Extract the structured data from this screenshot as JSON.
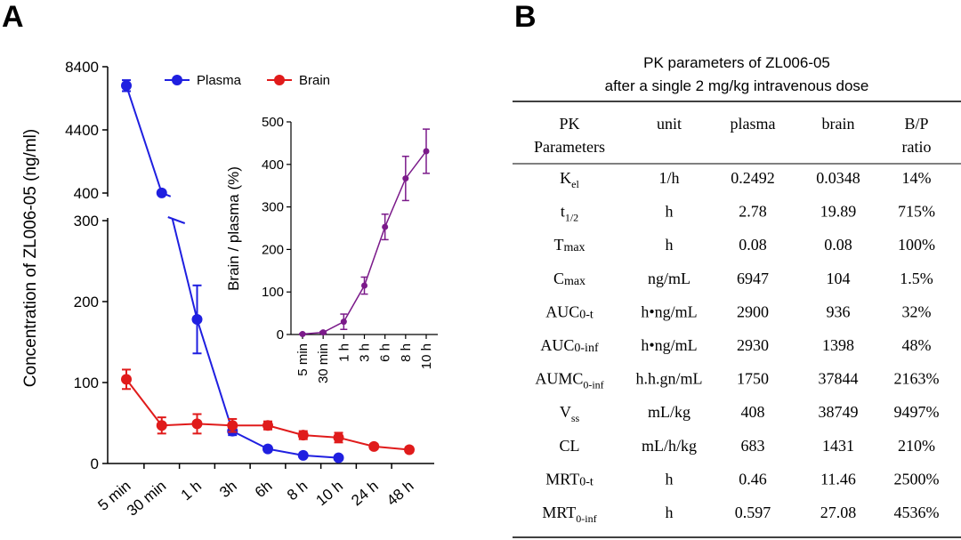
{
  "panels": {
    "a_label": "A",
    "b_label": "B"
  },
  "chart_data": [
    {
      "type": "line",
      "panel": "A",
      "title": "",
      "xlabel": "",
      "ylabel": "Concentration of ZL006-05 (ng/ml)",
      "categories": [
        "5 min",
        "30 min",
        "1 h",
        "3h",
        "6h",
        "8 h",
        "10 h",
        "24 h",
        "48 h"
      ],
      "yticks_lower": [
        "0",
        "100",
        "200",
        "300"
      ],
      "yticks_upper": [
        "400",
        "4400",
        "8400"
      ],
      "ylim_lower": [
        0,
        300
      ],
      "ylim_upper": [
        400,
        8400
      ],
      "axis_break": [
        300,
        400
      ],
      "series": [
        {
          "name": "Plasma",
          "color": "#1f1fe0",
          "values": [
            7200,
            410,
            178,
            40,
            18,
            10,
            7,
            null,
            null
          ],
          "errors": [
            350,
            0,
            42,
            5,
            3,
            2,
            1,
            null,
            null
          ]
        },
        {
          "name": "Brain",
          "color": "#e01b1b",
          "values": [
            104,
            47,
            49,
            47,
            47,
            35,
            32,
            21,
            17
          ],
          "errors": [
            12,
            10,
            12,
            8,
            5,
            5,
            6,
            3,
            3
          ]
        }
      ]
    },
    {
      "type": "line",
      "panel": "A-inset",
      "title": "",
      "xlabel": "",
      "ylabel": "Brain / plasma (%)",
      "categories": [
        "5 min",
        "30 min",
        "1 h",
        "3 h",
        "6 h",
        "8 h",
        "10 h"
      ],
      "yticks": [
        "0",
        "100",
        "200",
        "300",
        "400",
        "500"
      ],
      "ylim": [
        0,
        500
      ],
      "series": [
        {
          "name": "Brain / plasma",
          "color": "#7b1a8a",
          "values": [
            1,
            5,
            30,
            115,
            253,
            367,
            431
          ],
          "errors": [
            1,
            2,
            18,
            20,
            30,
            52,
            52
          ]
        }
      ]
    },
    {
      "type": "table",
      "panel": "B",
      "title_line1": "PK parameters of ZL006-05",
      "title_line2": "after a single 2 mg/kg intravenous dose",
      "headers": [
        {
          "line1": "PK",
          "line2": "Parameters"
        },
        {
          "line1": "unit",
          "line2": ""
        },
        {
          "line1": "plasma",
          "line2": ""
        },
        {
          "line1": "brain",
          "line2": ""
        },
        {
          "line1": "B/P",
          "line2": "ratio"
        }
      ],
      "rows": [
        {
          "param": "K",
          "sub": "el",
          "sub_style": "sub",
          "unit": "1/h",
          "plasma": "0.2492",
          "brain": "0.0348",
          "ratio": "14%"
        },
        {
          "param": "t",
          "sub": "1/2",
          "sub_style": "sub",
          "unit": "h",
          "plasma": "2.78",
          "brain": "19.89",
          "ratio": "715%"
        },
        {
          "param": "T",
          "sub": "max",
          "sub_style": "small",
          "unit": "h",
          "plasma": "0.08",
          "brain": "0.08",
          "ratio": "100%"
        },
        {
          "param": "C",
          "sub": "max",
          "sub_style": "small",
          "unit": "ng/mL",
          "plasma": "6947",
          "brain": "104",
          "ratio": "1.5%"
        },
        {
          "param": "AUC",
          "sub": "0-t",
          "sub_style": "small",
          "unit": "h•ng/mL",
          "plasma": "2900",
          "brain": "936",
          "ratio": "32%"
        },
        {
          "param": "AUC",
          "sub": "0-inf",
          "sub_style": "small",
          "unit": "h•ng/mL",
          "plasma": "2930",
          "brain": "1398",
          "ratio": "48%"
        },
        {
          "param": "AUMC",
          "sub": "0-inf",
          "sub_style": "sub",
          "unit": "h.h.gn/mL",
          "plasma": "1750",
          "brain": "37844",
          "ratio": "2163%"
        },
        {
          "param": "V",
          "sub": "ss",
          "sub_style": "sub",
          "unit": "mL/kg",
          "plasma": "408",
          "brain": "38749",
          "ratio": "9497%"
        },
        {
          "param": "CL",
          "sub": "",
          "sub_style": "none",
          "unit": "mL/h/kg",
          "plasma": "683",
          "brain": "1431",
          "ratio": "210%"
        },
        {
          "param": "MRT",
          "sub": "0-t",
          "sub_style": "small",
          "unit": "h",
          "plasma": "0.46",
          "brain": "11.46",
          "ratio": "2500%"
        },
        {
          "param": "MRT",
          "sub": "0-inf",
          "sub_style": "sub",
          "unit": "h",
          "plasma": "0.597",
          "brain": "27.08",
          "ratio": "4536%"
        }
      ]
    }
  ]
}
